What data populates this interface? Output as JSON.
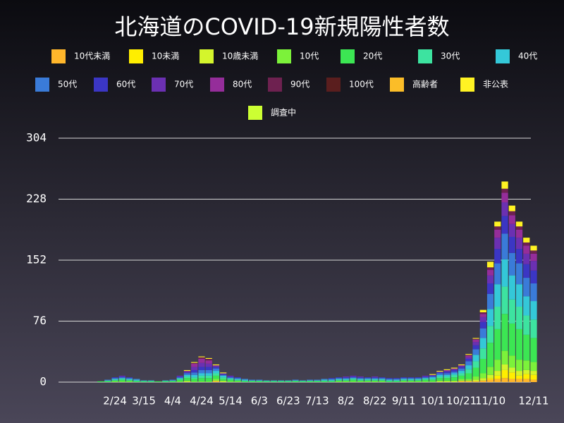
{
  "chart_data": {
    "type": "stacked_bar",
    "title": "北海道のCOVID-19新規陽性者数",
    "categories": [
      null,
      null,
      null,
      null,
      "2/24",
      null,
      null,
      null,
      "3/15",
      null,
      null,
      null,
      "4/4",
      null,
      null,
      null,
      "4/24",
      null,
      null,
      null,
      "5/14",
      null,
      null,
      null,
      "6/3",
      null,
      null,
      null,
      "6/23",
      null,
      null,
      null,
      "7/13",
      null,
      null,
      null,
      "8/2",
      null,
      null,
      null,
      "8/22",
      null,
      null,
      null,
      "9/11",
      null,
      null,
      null,
      "10/1",
      null,
      null,
      null,
      "10/21",
      null,
      null,
      null,
      "11/10",
      null,
      null,
      null,
      null,
      null,
      "12/11"
    ],
    "ylim": [
      0,
      304
    ],
    "yticks": [
      0,
      76,
      152,
      228,
      304
    ],
    "grid": true,
    "series": [
      {
        "name": "10代未満",
        "color": "#ffb62b",
        "values": [
          0,
          0,
          0,
          0,
          0,
          0,
          0,
          0,
          0,
          0,
          0,
          0,
          0,
          0,
          0,
          0,
          0,
          0,
          1,
          0,
          0,
          0,
          0,
          0,
          0,
          0,
          0,
          0,
          0,
          0,
          0,
          0,
          0,
          0,
          0,
          0,
          0,
          0,
          0,
          0,
          0,
          0,
          0,
          0,
          0,
          0,
          0,
          0,
          0,
          0,
          0,
          0,
          1,
          1,
          1,
          2,
          3,
          4,
          5,
          4,
          4,
          4,
          3
        ]
      },
      {
        "name": "10未満",
        "color": "#ffee00",
        "values": [
          0,
          0,
          0,
          0,
          0,
          0,
          0,
          0,
          0,
          0,
          0,
          0,
          0,
          0,
          0,
          0,
          0,
          0,
          0,
          0,
          0,
          0,
          0,
          0,
          0,
          0,
          0,
          0,
          0,
          0,
          0,
          0,
          0,
          0,
          0,
          0,
          0,
          0,
          0,
          0,
          0,
          0,
          0,
          0,
          0,
          0,
          0,
          0,
          0,
          0,
          0,
          0,
          0,
          0,
          0,
          0,
          2,
          4,
          10,
          8,
          4,
          6,
          6
        ]
      },
      {
        "name": "10歳未満",
        "color": "#d4f52c",
        "values": [
          0,
          0,
          0,
          0,
          0,
          0,
          0,
          0,
          0,
          0,
          0,
          0,
          0,
          0,
          1,
          0,
          0,
          0,
          1,
          1,
          0,
          0,
          0,
          0,
          0,
          0,
          0,
          0,
          0,
          0,
          0,
          0,
          0,
          0,
          0,
          0,
          0,
          0,
          0,
          0,
          0,
          0,
          0,
          0,
          0,
          0,
          0,
          0,
          0,
          1,
          1,
          1,
          1,
          1,
          2,
          3,
          4,
          6,
          7,
          6,
          6,
          5,
          5
        ]
      },
      {
        "name": "10代",
        "color": "#7cf23a",
        "values": [
          0,
          0,
          0,
          0,
          1,
          1,
          1,
          0,
          0,
          0,
          0,
          0,
          0,
          1,
          1,
          1,
          1,
          1,
          2,
          1,
          1,
          1,
          0,
          0,
          0,
          0,
          0,
          0,
          0,
          0,
          0,
          0,
          0,
          0,
          0,
          1,
          1,
          1,
          1,
          1,
          1,
          1,
          0,
          0,
          1,
          1,
          1,
          1,
          1,
          1,
          1,
          1,
          2,
          2,
          4,
          6,
          10,
          14,
          17,
          15,
          14,
          12,
          11
        ]
      },
      {
        "name": "20代",
        "color": "#3ce653",
        "values": [
          0,
          0,
          1,
          1,
          1,
          2,
          1,
          1,
          1,
          1,
          1,
          1,
          1,
          2,
          3,
          3,
          4,
          4,
          4,
          2,
          2,
          1,
          1,
          1,
          1,
          1,
          1,
          1,
          1,
          1,
          1,
          1,
          1,
          1,
          1,
          1,
          1,
          2,
          1,
          1,
          1,
          1,
          1,
          1,
          1,
          1,
          1,
          2,
          2,
          3,
          3,
          4,
          4,
          7,
          11,
          18,
          30,
          38,
          46,
          40,
          38,
          32,
          30
        ]
      },
      {
        "name": "30代",
        "color": "#3de3a0",
        "values": [
          0,
          0,
          0,
          1,
          1,
          1,
          1,
          1,
          0,
          0,
          0,
          0,
          1,
          1,
          2,
          2,
          3,
          3,
          3,
          2,
          1,
          1,
          1,
          1,
          1,
          0,
          0,
          0,
          0,
          1,
          0,
          1,
          1,
          1,
          1,
          1,
          1,
          1,
          1,
          1,
          1,
          1,
          1,
          1,
          1,
          1,
          1,
          1,
          1,
          2,
          2,
          3,
          3,
          5,
          8,
          13,
          21,
          28,
          34,
          30,
          28,
          24,
          23
        ]
      },
      {
        "name": "40代",
        "color": "#34c8d8",
        "values": [
          0,
          0,
          0,
          0,
          1,
          1,
          1,
          1,
          1,
          1,
          0,
          1,
          0,
          1,
          2,
          3,
          3,
          3,
          3,
          2,
          1,
          1,
          1,
          0,
          0,
          1,
          1,
          1,
          1,
          0,
          1,
          0,
          0,
          1,
          1,
          1,
          1,
          1,
          1,
          1,
          1,
          1,
          1,
          1,
          1,
          1,
          1,
          1,
          2,
          2,
          2,
          2,
          3,
          5,
          8,
          13,
          21,
          28,
          34,
          30,
          28,
          24,
          23
        ]
      },
      {
        "name": "50代",
        "color": "#3a7bd8",
        "values": [
          0,
          0,
          0,
          1,
          1,
          1,
          1,
          1,
          0,
          0,
          0,
          0,
          1,
          1,
          2,
          3,
          4,
          4,
          3,
          1,
          1,
          1,
          1,
          1,
          1,
          0,
          0,
          0,
          0,
          1,
          0,
          1,
          1,
          1,
          1,
          1,
          1,
          1,
          1,
          1,
          1,
          1,
          1,
          1,
          1,
          1,
          1,
          1,
          1,
          2,
          2,
          2,
          3,
          5,
          7,
          12,
          19,
          26,
          32,
          28,
          26,
          23,
          22
        ]
      },
      {
        "name": "60代",
        "color": "#3b36c4",
        "values": [
          0,
          0,
          0,
          0,
          1,
          1,
          1,
          0,
          0,
          0,
          0,
          0,
          0,
          1,
          1,
          3,
          4,
          4,
          2,
          1,
          1,
          1,
          0,
          0,
          0,
          0,
          0,
          0,
          0,
          0,
          0,
          0,
          0,
          0,
          1,
          1,
          1,
          1,
          1,
          1,
          1,
          1,
          1,
          1,
          1,
          1,
          1,
          1,
          1,
          1,
          2,
          2,
          2,
          3,
          5,
          8,
          13,
          18,
          22,
          20,
          18,
          17,
          16
        ]
      },
      {
        "name": "70代",
        "color": "#6b30b2",
        "values": [
          0,
          0,
          0,
          0,
          0,
          1,
          0,
          0,
          0,
          0,
          0,
          0,
          0,
          1,
          1,
          4,
          5,
          4,
          1,
          1,
          1,
          0,
          0,
          0,
          0,
          0,
          0,
          0,
          0,
          0,
          0,
          0,
          0,
          0,
          0,
          0,
          1,
          1,
          1,
          0,
          1,
          0,
          0,
          0,
          0,
          0,
          0,
          1,
          1,
          1,
          1,
          1,
          1,
          2,
          4,
          6,
          10,
          14,
          17,
          16,
          14,
          13,
          12
        ]
      },
      {
        "name": "80代",
        "color": "#952d9a",
        "values": [
          0,
          0,
          0,
          0,
          0,
          0,
          0,
          0,
          0,
          0,
          0,
          0,
          0,
          0,
          1,
          4,
          5,
          4,
          1,
          0,
          0,
          0,
          0,
          0,
          0,
          0,
          0,
          0,
          0,
          0,
          0,
          0,
          0,
          0,
          0,
          0,
          0,
          0,
          0,
          0,
          0,
          0,
          0,
          0,
          0,
          0,
          0,
          0,
          0,
          0,
          1,
          1,
          1,
          2,
          3,
          4,
          7,
          10,
          12,
          11,
          10,
          10,
          9
        ]
      },
      {
        "name": "90代",
        "color": "#6e2150",
        "values": [
          0,
          0,
          0,
          0,
          0,
          0,
          0,
          0,
          0,
          0,
          0,
          0,
          0,
          0,
          0,
          1,
          2,
          2,
          0,
          0,
          0,
          0,
          0,
          0,
          0,
          0,
          0,
          0,
          0,
          0,
          0,
          0,
          0,
          0,
          0,
          0,
          0,
          0,
          0,
          0,
          0,
          0,
          0,
          0,
          0,
          0,
          0,
          0,
          0,
          0,
          0,
          0,
          0,
          1,
          1,
          2,
          3,
          4,
          5,
          5,
          4,
          4,
          4
        ]
      },
      {
        "name": "100代",
        "color": "#5a1e1e",
        "values": [
          0,
          0,
          0,
          0,
          0,
          0,
          0,
          0,
          0,
          0,
          0,
          0,
          0,
          0,
          0,
          0,
          0,
          0,
          0,
          0,
          0,
          0,
          0,
          0,
          0,
          0,
          0,
          0,
          0,
          0,
          0,
          0,
          0,
          0,
          0,
          0,
          0,
          0,
          0,
          0,
          0,
          0,
          0,
          0,
          0,
          0,
          0,
          0,
          0,
          0,
          0,
          0,
          0,
          0,
          0,
          0,
          0,
          0,
          0,
          0,
          0,
          0,
          0
        ]
      },
      {
        "name": "高齢者",
        "color": "#fbbd28",
        "values": [
          0,
          0,
          0,
          0,
          0,
          0,
          0,
          0,
          0,
          0,
          0,
          0,
          0,
          0,
          0,
          0,
          0,
          0,
          0,
          0,
          0,
          0,
          0,
          0,
          0,
          0,
          0,
          0,
          0,
          0,
          0,
          0,
          0,
          0,
          0,
          0,
          0,
          0,
          0,
          0,
          0,
          0,
          0,
          0,
          0,
          0,
          0,
          0,
          0,
          0,
          0,
          0,
          0,
          0,
          0,
          0,
          0,
          0,
          0,
          0,
          0,
          0,
          0
        ]
      },
      {
        "name": "非公表",
        "color": "#fff323",
        "values": [
          0,
          0,
          0,
          0,
          0,
          0,
          0,
          0,
          0,
          0,
          0,
          0,
          0,
          0,
          1,
          1,
          1,
          1,
          1,
          1,
          0,
          0,
          0,
          0,
          0,
          0,
          0,
          0,
          0,
          0,
          0,
          0,
          0,
          0,
          0,
          0,
          0,
          0,
          0,
          0,
          0,
          0,
          0,
          0,
          0,
          0,
          0,
          0,
          1,
          1,
          1,
          1,
          1,
          1,
          1,
          3,
          7,
          6,
          9,
          7,
          6,
          6,
          6
        ]
      },
      {
        "name": "調査中",
        "color": "#ccff33",
        "values": [
          0,
          0,
          0,
          0,
          0,
          0,
          0,
          0,
          0,
          0,
          0,
          0,
          0,
          0,
          0,
          0,
          0,
          0,
          0,
          0,
          0,
          0,
          0,
          0,
          0,
          0,
          0,
          0,
          0,
          0,
          0,
          0,
          0,
          0,
          0,
          0,
          0,
          0,
          0,
          0,
          0,
          0,
          0,
          0,
          0,
          0,
          0,
          0,
          0,
          0,
          0,
          0,
          0,
          0,
          0,
          0,
          0,
          0,
          0,
          0,
          0,
          0,
          0
        ]
      }
    ]
  }
}
